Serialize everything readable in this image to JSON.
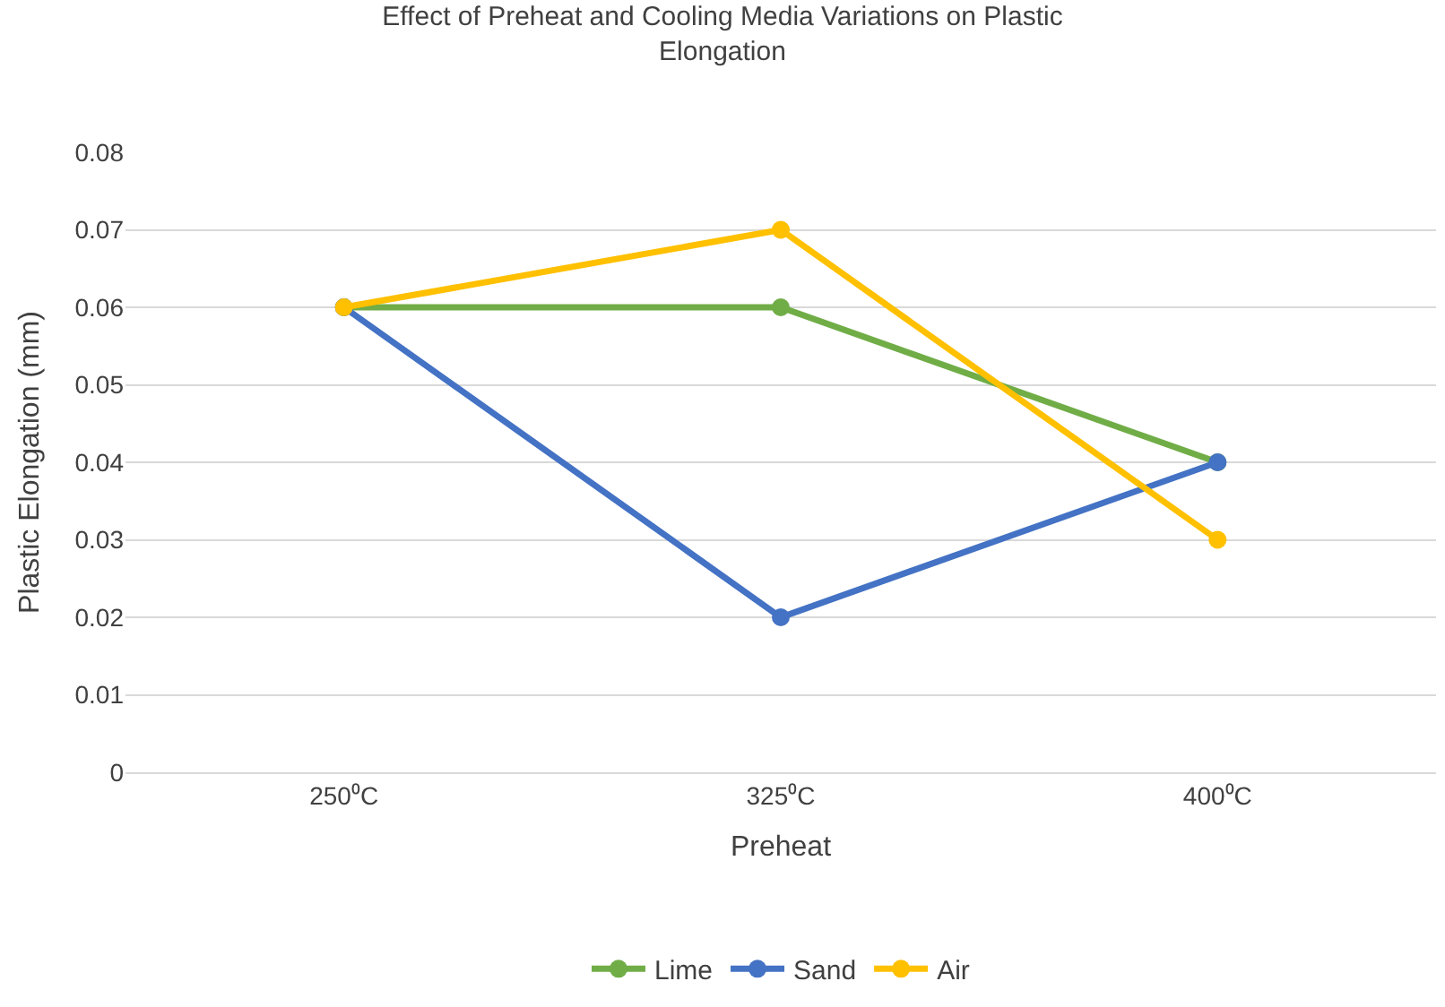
{
  "chart_data": {
    "type": "line",
    "title": "Effect of Preheat and Cooling Media Variations on Plastic Elongation",
    "xlabel": "Preheat",
    "ylabel": "Plastic Elongation (mm)",
    "categories": [
      "250⁰C",
      "325⁰C",
      "400⁰C"
    ],
    "series": [
      {
        "name": "Lime",
        "color": "#70ad47",
        "values": [
          0.06,
          0.06,
          0.04
        ]
      },
      {
        "name": "Sand",
        "color": "#4472c4",
        "values": [
          0.06,
          0.02,
          0.04
        ]
      },
      {
        "name": "Air",
        "color": "#ffc000",
        "values": [
          0.06,
          0.07,
          0.03
        ]
      }
    ],
    "ylim": [
      0,
      0.08
    ],
    "yticks": [
      0,
      0.01,
      0.02,
      0.03,
      0.04,
      0.05,
      0.06,
      0.07,
      0.08
    ],
    "grid": "y",
    "legend": "bottom",
    "marker": "circle",
    "line_style": "solid"
  }
}
